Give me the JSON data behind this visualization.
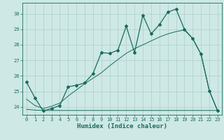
{
  "xlabel": "Humidex (Indice chaleur)",
  "background_color": "#cde8e5",
  "grid_color": "#aecfcc",
  "line_color": "#1a6b5e",
  "xlim": [
    -0.5,
    23.5
  ],
  "ylim": [
    23.5,
    30.7
  ],
  "yticks": [
    24,
    25,
    26,
    27,
    28,
    29,
    30
  ],
  "xticks": [
    0,
    1,
    2,
    3,
    4,
    5,
    6,
    7,
    8,
    9,
    10,
    11,
    12,
    13,
    14,
    15,
    16,
    17,
    18,
    19,
    20,
    21,
    22,
    23
  ],
  "main_line_x": [
    0,
    1,
    2,
    3,
    4,
    5,
    6,
    7,
    8,
    9,
    10,
    11,
    12,
    13,
    14,
    15,
    16,
    17,
    18,
    19,
    20,
    21,
    22,
    23
  ],
  "main_line_y": [
    25.6,
    24.6,
    23.75,
    23.9,
    24.1,
    25.3,
    25.4,
    25.55,
    26.15,
    27.5,
    27.45,
    27.65,
    29.2,
    27.5,
    29.9,
    28.7,
    29.3,
    30.1,
    30.3,
    29.0,
    28.4,
    27.4,
    25.05,
    23.75
  ],
  "diag_line_x": [
    0,
    1,
    2,
    3,
    4,
    5,
    6,
    7,
    8,
    9,
    10,
    11,
    12,
    13,
    14,
    15,
    16,
    17,
    18,
    19,
    20,
    21,
    22,
    23
  ],
  "diag_line_y": [
    24.5,
    24.1,
    23.9,
    24.05,
    24.25,
    24.7,
    25.1,
    25.5,
    25.85,
    26.2,
    26.65,
    27.05,
    27.45,
    27.75,
    28.0,
    28.25,
    28.5,
    28.7,
    28.85,
    28.95,
    28.4,
    27.4,
    25.05,
    23.75
  ],
  "flat_line_x": [
    0,
    1,
    2,
    3,
    4,
    5,
    6,
    7,
    8,
    9,
    10,
    11,
    12,
    13,
    14,
    15,
    16,
    17,
    18,
    19,
    20,
    21,
    22,
    23
  ],
  "flat_line_y": [
    23.85,
    23.8,
    23.78,
    23.78,
    23.78,
    23.78,
    23.78,
    23.78,
    23.78,
    23.78,
    23.78,
    23.78,
    23.78,
    23.78,
    23.78,
    23.78,
    23.78,
    23.78,
    23.78,
    23.78,
    23.78,
    23.78,
    23.78,
    23.78
  ]
}
